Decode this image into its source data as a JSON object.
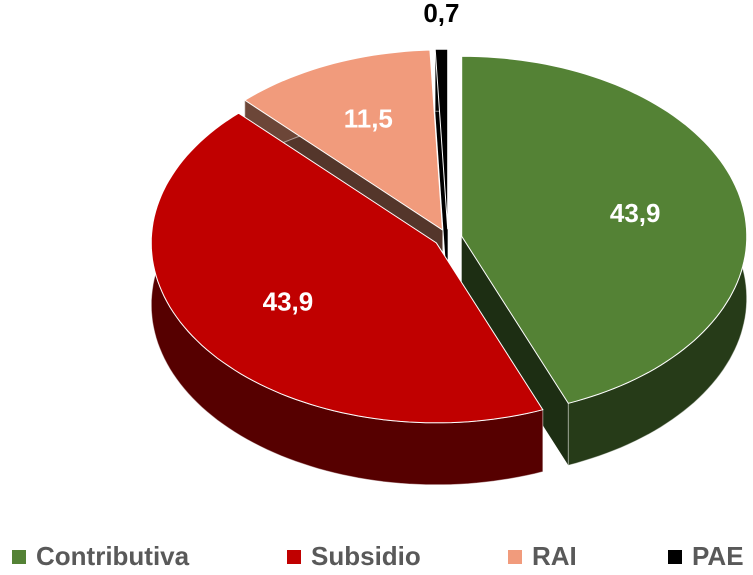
{
  "chart_data": {
    "type": "pie",
    "categories": [
      "Contributiva",
      "Subsidio",
      "RAI",
      "PAE"
    ],
    "values": [
      43.9,
      43.9,
      11.5,
      0.7
    ],
    "value_labels": [
      "43,9",
      "43,9",
      "11,5",
      "0,7"
    ],
    "colors": [
      "#548235",
      "#c00000",
      "#f19b7c",
      "#000000"
    ],
    "legend": "bottom"
  }
}
